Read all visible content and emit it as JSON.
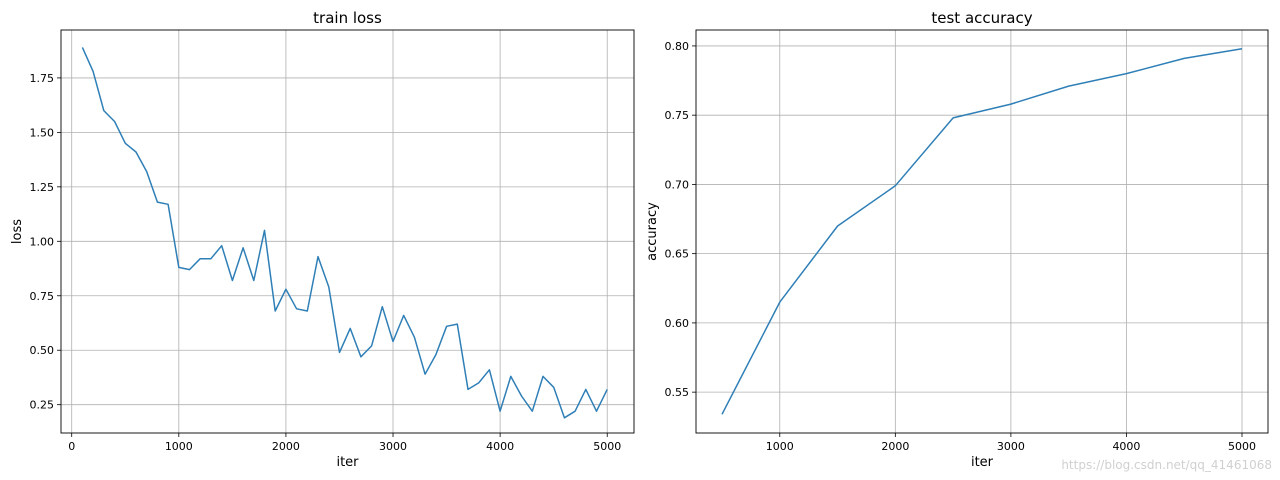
{
  "chart_data": [
    {
      "type": "line",
      "title": "train loss",
      "xlabel": "iter",
      "ylabel": "loss",
      "xlim": [
        -100,
        5250
      ],
      "ylim": [
        0.12,
        1.97
      ],
      "xticks": [
        0,
        1000,
        2000,
        3000,
        4000,
        5000
      ],
      "yticks": [
        0.25,
        0.5,
        0.75,
        1.0,
        1.25,
        1.5,
        1.75
      ],
      "ytick_labels": [
        "0.25",
        "0.50",
        "0.75",
        "1.00",
        "1.25",
        "1.50",
        "1.75"
      ],
      "grid": true,
      "color": "#2f7fb7",
      "series": [
        {
          "x": [
            100,
            200,
            300,
            400,
            500,
            600,
            700,
            800,
            900,
            1000,
            1100,
            1200,
            1300,
            1400,
            1500,
            1600,
            1700,
            1800,
            1900,
            2000,
            2100,
            2200,
            2300,
            2400,
            2500,
            2600,
            2700,
            2800,
            2900,
            3000,
            3100,
            3200,
            3300,
            3400,
            3500,
            3600,
            3700,
            3800,
            3900,
            4000,
            4100,
            4200,
            4300,
            4400,
            4500,
            4600,
            4700,
            4800,
            4900,
            5000
          ],
          "y": [
            1.89,
            1.78,
            1.6,
            1.55,
            1.45,
            1.41,
            1.32,
            1.18,
            1.17,
            0.88,
            0.87,
            0.92,
            0.92,
            0.98,
            0.82,
            0.97,
            0.82,
            1.05,
            0.68,
            0.78,
            0.69,
            0.68,
            0.93,
            0.79,
            0.49,
            0.6,
            0.47,
            0.52,
            0.7,
            0.54,
            0.66,
            0.56,
            0.39,
            0.48,
            0.61,
            0.62,
            0.32,
            0.35,
            0.41,
            0.22,
            0.38,
            0.29,
            0.22,
            0.38,
            0.33,
            0.19,
            0.22,
            0.32,
            0.22,
            0.32
          ]
        }
      ]
    },
    {
      "type": "line",
      "title": "test accuracy",
      "xlabel": "iter",
      "ylabel": "accuracy",
      "xlim": [
        275,
        5225
      ],
      "ylim": [
        0.5205,
        0.8115
      ],
      "xticks": [
        1000,
        2000,
        3000,
        4000,
        5000
      ],
      "yticks": [
        0.55,
        0.6,
        0.65,
        0.7,
        0.75,
        0.8
      ],
      "ytick_labels": [
        "0.55",
        "0.60",
        "0.65",
        "0.70",
        "0.75",
        "0.80"
      ],
      "grid": true,
      "color": "#2f7fb7",
      "series": [
        {
          "x": [
            500,
            1000,
            1500,
            2000,
            2500,
            3000,
            3500,
            4000,
            4500,
            5000
          ],
          "y": [
            0.534,
            0.615,
            0.67,
            0.699,
            0.748,
            0.758,
            0.771,
            0.78,
            0.791,
            0.798
          ]
        }
      ]
    }
  ],
  "watermark": "https://blog.csdn.net/qq_41461068"
}
